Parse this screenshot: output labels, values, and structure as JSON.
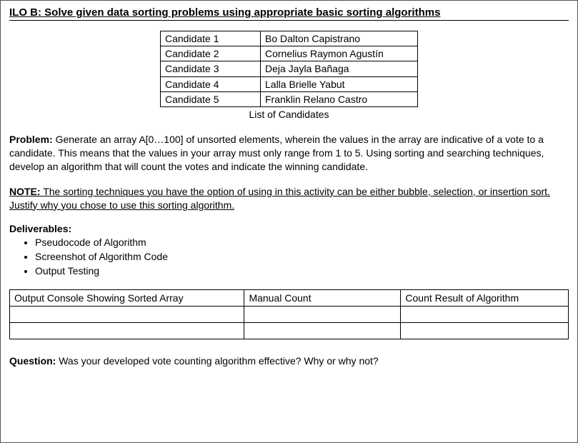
{
  "title": "ILO B: Solve given data sorting problems using appropriate basic sorting algorithms",
  "candidates": {
    "rows": [
      {
        "key": "Candidate 1",
        "name": "Bo Dalton Capistrano"
      },
      {
        "key": "Candidate 2",
        "name": "Cornelius Raymon Agustín"
      },
      {
        "key": "Candidate 3",
        "name": "Deja Jayla Bañaga"
      },
      {
        "key": "Candidate 4",
        "name": "Lalla Brielle Yabut"
      },
      {
        "key": "Candidate 5",
        "name": "Franklin Relano Castro"
      }
    ],
    "caption": "List of Candidates"
  },
  "problem": {
    "label": "Problem:",
    "text": " Generate an array A[0…100] of unsorted elements, wherein the values in the array are indicative of a vote to a candidate. This means that the values in your array must only range from 1 to 5. Using sorting and searching techniques, develop an algorithm that will count the votes and indicate the winning candidate."
  },
  "note": {
    "label": "NOTE:",
    "text": " The sorting techniques you have the option of using in this activity can be either bubble, selection, or insertion sort. Justify why you chose to use this sorting algorithm."
  },
  "deliverables": {
    "label": "Deliverables:",
    "items": [
      "Pseudocode of Algorithm",
      "Screenshot of Algorithm Code",
      "Output Testing"
    ]
  },
  "output_table": {
    "headers": [
      "Output Console Showing Sorted Array",
      "Manual Count",
      "Count Result of Algorithm"
    ],
    "empty_rows": 2
  },
  "question": {
    "label": "Question:",
    "text": " Was your developed vote counting algorithm effective? Why or why not?"
  }
}
